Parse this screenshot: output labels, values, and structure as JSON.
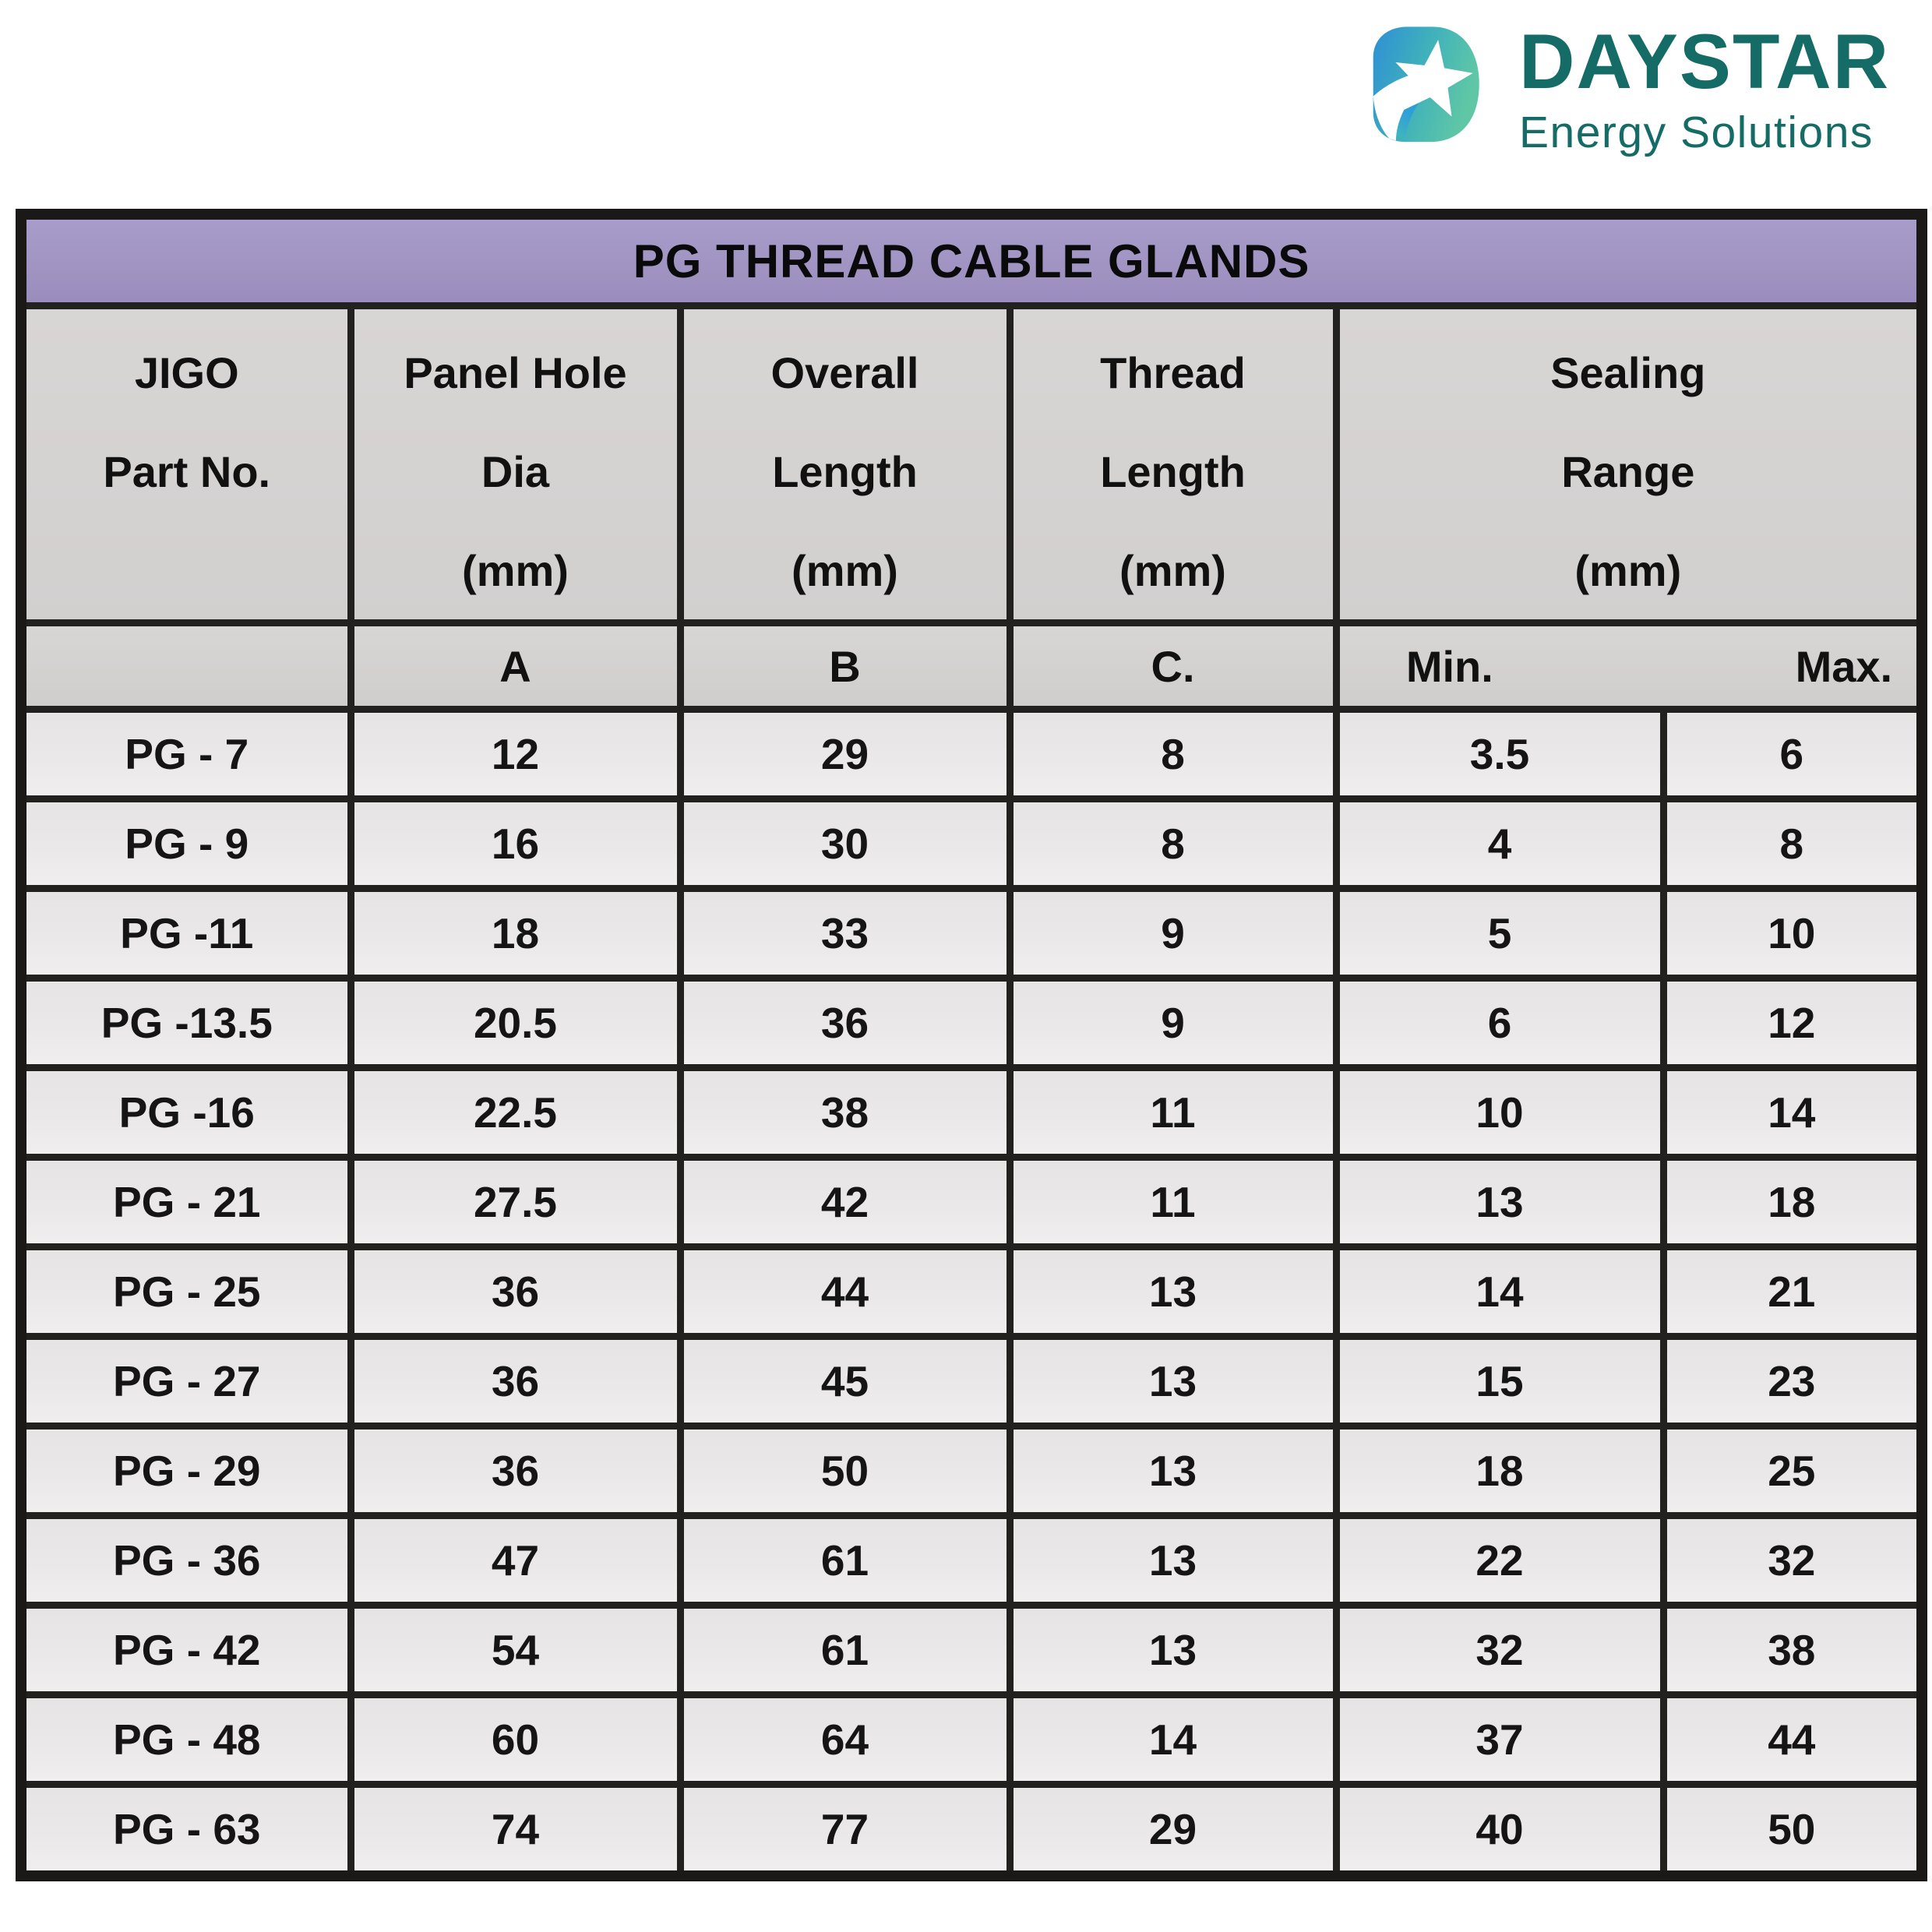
{
  "logo": {
    "brand": "DAYSTAR",
    "tagline": "Energy Solutions",
    "colors": {
      "brand_teal": "#156b66",
      "mark_blue": "#2e8fd5",
      "mark_green": "#5fc7a6"
    }
  },
  "table": {
    "title": "PG THREAD CABLE GLANDS",
    "colors": {
      "title_bg": "#9f92c1",
      "header_bg": "#d3d0d0",
      "row_bg": "#e9e7e7",
      "border": "#232020"
    },
    "header": [
      {
        "lines": [
          "JIGO",
          "Part No.",
          ""
        ]
      },
      {
        "lines": [
          "Panel Hole",
          "Dia",
          "(mm)"
        ]
      },
      {
        "lines": [
          "Overall",
          "Length",
          "(mm)"
        ]
      },
      {
        "lines": [
          "Thread",
          "Length",
          "(mm)"
        ]
      },
      {
        "lines": [
          "Sealing",
          "Range",
          "(mm)"
        ]
      }
    ],
    "subheader": {
      "part": "",
      "a": "A",
      "b": "B",
      "c": "C.",
      "min": "Min.",
      "max": "Max."
    },
    "rows": [
      {
        "part": "PG - 7",
        "a": "12",
        "b": "29",
        "c": "8",
        "min": "3.5",
        "max": "6"
      },
      {
        "part": "PG - 9",
        "a": "16",
        "b": "30",
        "c": "8",
        "min": "4",
        "max": "8"
      },
      {
        "part": "PG -11",
        "a": "18",
        "b": "33",
        "c": "9",
        "min": "5",
        "max": "10"
      },
      {
        "part": "PG -13.5",
        "a": "20.5",
        "b": "36",
        "c": "9",
        "min": "6",
        "max": "12"
      },
      {
        "part": "PG -16",
        "a": "22.5",
        "b": "38",
        "c": "11",
        "min": "10",
        "max": "14"
      },
      {
        "part": "PG - 21",
        "a": "27.5",
        "b": "42",
        "c": "11",
        "min": "13",
        "max": "18"
      },
      {
        "part": "PG - 25",
        "a": "36",
        "b": "44",
        "c": "13",
        "min": "14",
        "max": "21"
      },
      {
        "part": "PG - 27",
        "a": "36",
        "b": "45",
        "c": "13",
        "min": "15",
        "max": "23"
      },
      {
        "part": "PG - 29",
        "a": "36",
        "b": "50",
        "c": "13",
        "min": "18",
        "max": "25"
      },
      {
        "part": "PG - 36",
        "a": "47",
        "b": "61",
        "c": "13",
        "min": "22",
        "max": "32"
      },
      {
        "part": "PG - 42",
        "a": "54",
        "b": "61",
        "c": "13",
        "min": "32",
        "max": "38"
      },
      {
        "part": "PG - 48",
        "a": "60",
        "b": "64",
        "c": "14",
        "min": "37",
        "max": "44"
      },
      {
        "part": "PG - 63",
        "a": "74",
        "b": "77",
        "c": "29",
        "min": "40",
        "max": "50"
      }
    ]
  }
}
